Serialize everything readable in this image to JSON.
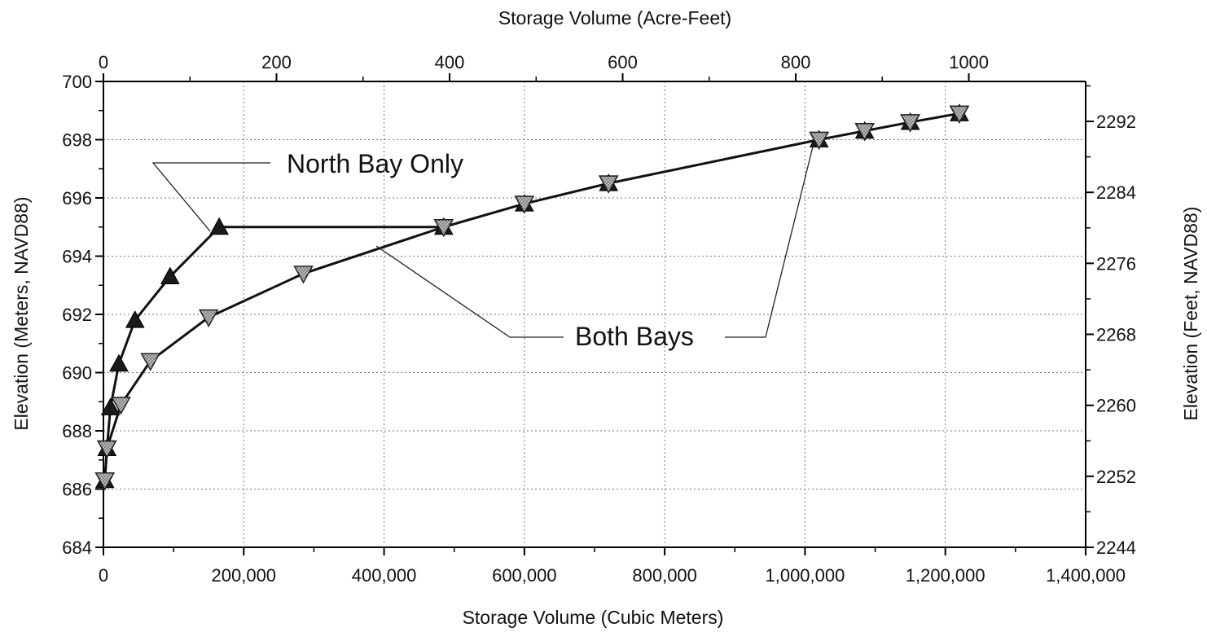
{
  "chart_data": {
    "type": "line",
    "top_axis_title": "Storage Volume (Acre-Feet)",
    "bottom_axis_title": "Storage Volume (Cubic Meters)",
    "left_axis_title": "Elevation (Meters, NAVD88)",
    "right_axis_title": "Elevation (Feet, NAVD88)",
    "x_range": [
      0,
      1400000
    ],
    "y_range": [
      684,
      700
    ],
    "x_ticks": [
      0,
      200000,
      400000,
      600000,
      800000,
      1000000,
      1200000,
      1400000
    ],
    "x_tick_labels": [
      "0",
      "200,000",
      "400,000",
      "600,000",
      "800,000",
      "1,000,000",
      "1,200,000",
      "1,400,000"
    ],
    "x2_range": [
      0,
      1135
    ],
    "x2_ticks": [
      0,
      200,
      400,
      600,
      800,
      1000
    ],
    "x2_tick_labels": [
      "0",
      "200",
      "400",
      "600",
      "800",
      "1000"
    ],
    "y_ticks": [
      684,
      686,
      688,
      690,
      692,
      694,
      696,
      698,
      700
    ],
    "y_tick_labels": [
      "684",
      "686",
      "688",
      "690",
      "692",
      "694",
      "696",
      "698",
      "700"
    ],
    "y2_range": [
      2244,
      2296.5
    ],
    "y2_ticks": [
      2244,
      2252,
      2260,
      2268,
      2276,
      2284,
      2292
    ],
    "y2_tick_labels": [
      "2244",
      "2252",
      "2260",
      "2268",
      "2276",
      "2284",
      "2292"
    ],
    "grid": true,
    "series": [
      {
        "name": "North Bay Only",
        "x": [
          2000,
          5000,
          10000,
          22000,
          45000,
          95000,
          165000,
          480000
        ],
        "y": [
          686.3,
          687.4,
          688.8,
          690.3,
          691.8,
          693.3,
          695.0,
          695.0
        ]
      },
      {
        "name": "Both Bays",
        "x": [
          2000,
          5000,
          25000,
          67000,
          150000,
          285000,
          485000,
          600000,
          720000,
          1020000,
          1085000,
          1150000,
          1220000
        ],
        "y": [
          686.3,
          687.4,
          688.9,
          690.4,
          691.9,
          693.4,
          695.0,
          695.8,
          696.5,
          698.0,
          698.3,
          698.6,
          698.9
        ]
      }
    ],
    "annotations": [
      {
        "text": "North Bay Only"
      },
      {
        "text": "Both Bays"
      }
    ]
  }
}
